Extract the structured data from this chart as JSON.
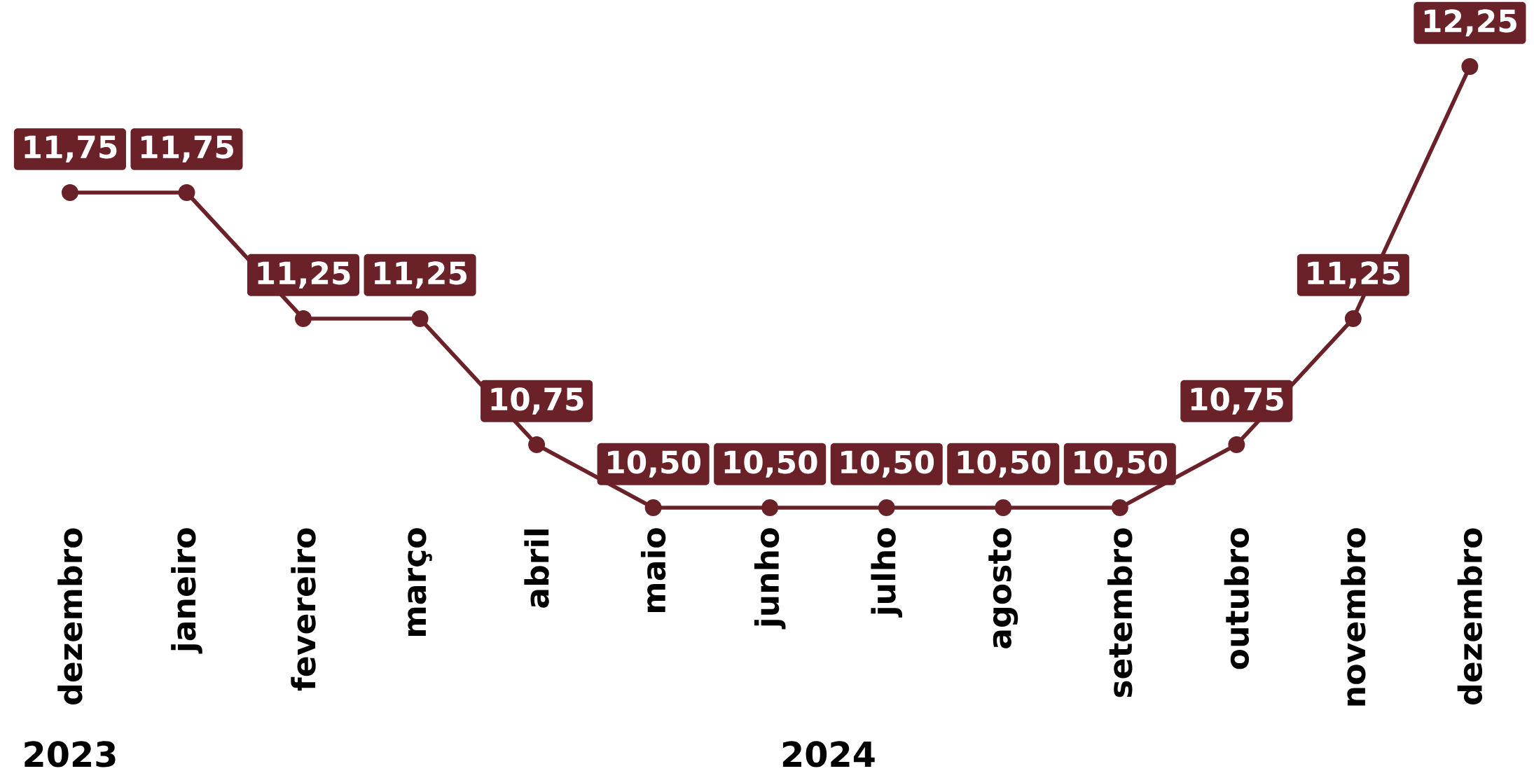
{
  "chart_data": {
    "type": "line",
    "categories": [
      "dezembro",
      "janeiro",
      "fevereiro",
      "março",
      "abril",
      "maio",
      "junho",
      "julho",
      "agosto",
      "setembro",
      "outubro",
      "novembro",
      "dezembro"
    ],
    "series": [
      {
        "color": "#6b2128",
        "values": [
          11.75,
          11.75,
          11.25,
          11.25,
          10.75,
          10.5,
          10.5,
          10.5,
          10.5,
          10.5,
          10.75,
          11.25,
          12.25
        ],
        "value_labels": [
          "11,75",
          "11,75",
          "11,25",
          "11,25",
          "10,75",
          "10,50",
          "10,50",
          "10,50",
          "10,50",
          "10,50",
          "10,75",
          "11,25",
          "12,25"
        ]
      }
    ],
    "data_labels": true,
    "marker": "circle",
    "line_style": "solid",
    "annotations": [
      "2023",
      "2024"
    ]
  }
}
